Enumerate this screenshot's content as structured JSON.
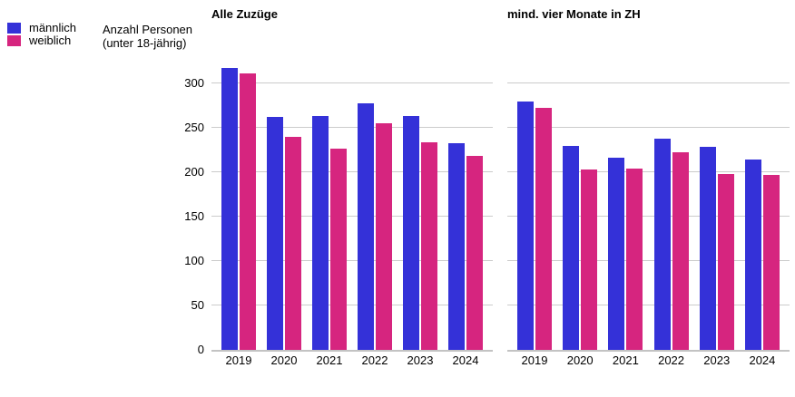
{
  "legend": {
    "items": [
      {
        "label": "männlich",
        "color": "#3431d8"
      },
      {
        "label": "weiblich",
        "color": "#d6257f"
      }
    ]
  },
  "axis_note": {
    "line1": "Anzahl Personen",
    "line2": "(unter 18-jährig)"
  },
  "colors": {
    "maennlich": "#3431d8",
    "weiblich": "#d6257f",
    "gridline": "#cbcbcb",
    "axis": "#c3c3c3"
  },
  "chart_data": [
    {
      "type": "bar",
      "title": "Alle Zuzüge",
      "categories": [
        "2019",
        "2020",
        "2021",
        "2022",
        "2023",
        "2024"
      ],
      "series": [
        {
          "name": "männlich",
          "color": "#3431d8",
          "values": [
            317,
            262,
            263,
            278,
            263,
            233
          ]
        },
        {
          "name": "weiblich",
          "color": "#d6257f",
          "values": [
            311,
            240,
            227,
            255,
            234,
            218
          ]
        }
      ],
      "xlabel": "",
      "ylabel": "Anzahl Personen (unter 18-jährig)",
      "ylim": [
        0,
        300
      ],
      "yticks": [
        0,
        50,
        100,
        150,
        200,
        250,
        300
      ],
      "grid": true,
      "legend_position": "top-left"
    },
    {
      "type": "bar",
      "title": "mind. vier Monate in ZH",
      "categories": [
        "2019",
        "2020",
        "2021",
        "2022",
        "2023",
        "2024"
      ],
      "series": [
        {
          "name": "männlich",
          "color": "#3431d8",
          "values": [
            280,
            230,
            216,
            238,
            229,
            214
          ]
        },
        {
          "name": "weiblich",
          "color": "#d6257f",
          "values": [
            272,
            203,
            204,
            222,
            198,
            197
          ]
        }
      ],
      "xlabel": "",
      "ylabel": "Anzahl Personen (unter 18-jährig)",
      "ylim": [
        0,
        300
      ],
      "yticks": [
        0,
        50,
        100,
        150,
        200,
        250,
        300
      ],
      "grid": true,
      "legend_position": "none"
    }
  ]
}
